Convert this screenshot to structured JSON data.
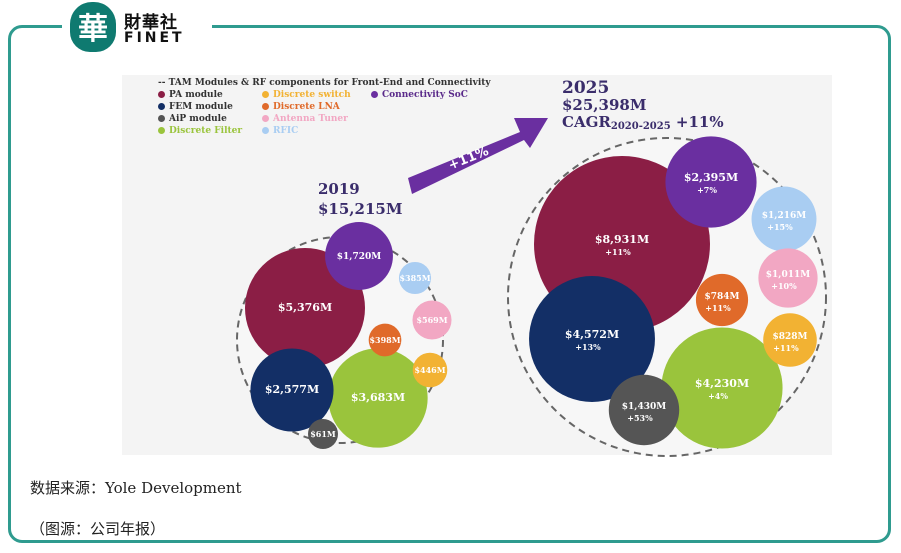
{
  "logo": {
    "cn": "財華社",
    "en": "FINET",
    "seal_char": "華"
  },
  "chart_data": {
    "type": "bubble",
    "legend_title": "-- TAM Modules & RF components for Front-End and Connectivity",
    "legend": [
      {
        "label": "PA module",
        "color": "#8b1e45"
      },
      {
        "label": "Discrete switch",
        "color": "#f2b233"
      },
      {
        "label": "Connectivity SoC",
        "color": "#6a2fa0"
      },
      {
        "label": "FEM module",
        "color": "#132f66"
      },
      {
        "label": "Discrete LNA",
        "color": "#e06a2a"
      },
      {
        "label": "AiP module",
        "color": "#555555"
      },
      {
        "label": "Antenna Tuner",
        "color": "#f2a7c3"
      },
      {
        "label": "Discrete Filter",
        "color": "#9ac43c"
      },
      {
        "label": "RFIC",
        "color": "#a9cdf2"
      }
    ],
    "arrow_label": "+11%",
    "groups": [
      {
        "year": "2019",
        "total": "$15,215M",
        "bubbles": [
          {
            "segment": "PA module",
            "value": 5376,
            "label": "$5,376M"
          },
          {
            "segment": "Discrete Filter",
            "value": 3683,
            "label": "$3,683M"
          },
          {
            "segment": "FEM module",
            "value": 2577,
            "label": "$2,577M"
          },
          {
            "segment": "Connectivity SoC",
            "value": 1720,
            "label": "$1,720M"
          },
          {
            "segment": "Antenna Tuner",
            "value": 569,
            "label": "$569M"
          },
          {
            "segment": "Discrete switch",
            "value": 446,
            "label": "$446M"
          },
          {
            "segment": "Discrete LNA",
            "value": 398,
            "label": "$398M"
          },
          {
            "segment": "RFIC",
            "value": 385,
            "label": "$385M"
          },
          {
            "segment": "AiP module",
            "value": 61,
            "label": "$61M"
          }
        ]
      },
      {
        "year": "2025",
        "total": "$25,398M",
        "cagr_label": "CAGR",
        "cagr_period": "2020-2025",
        "cagr_value": "+11%",
        "bubbles": [
          {
            "segment": "PA module",
            "value": 8931,
            "label": "$8,931M",
            "growth": "+11%"
          },
          {
            "segment": "FEM module",
            "value": 4572,
            "label": "$4,572M",
            "growth": "+13%"
          },
          {
            "segment": "Discrete Filter",
            "value": 4230,
            "label": "$4,230M",
            "growth": "+4%"
          },
          {
            "segment": "Connectivity SoC",
            "value": 2395,
            "label": "$2,395M",
            "growth": "+7%"
          },
          {
            "segment": "AiP module",
            "value": 1430,
            "label": "$1,430M",
            "growth": "+53%"
          },
          {
            "segment": "RFIC",
            "value": 1216,
            "label": "$1,216M",
            "growth": "+15%"
          },
          {
            "segment": "Antenna Tuner",
            "value": 1011,
            "label": "$1,011M",
            "growth": "+10%"
          },
          {
            "segment": "Discrete switch",
            "value": 828,
            "label": "$828M",
            "growth": "+11%"
          },
          {
            "segment": "Discrete LNA",
            "value": 784,
            "label": "$784M",
            "growth": "+11%"
          }
        ]
      }
    ]
  },
  "source_text": "数据来源：Yole Development",
  "caption_text": "（图源：公司年报）"
}
